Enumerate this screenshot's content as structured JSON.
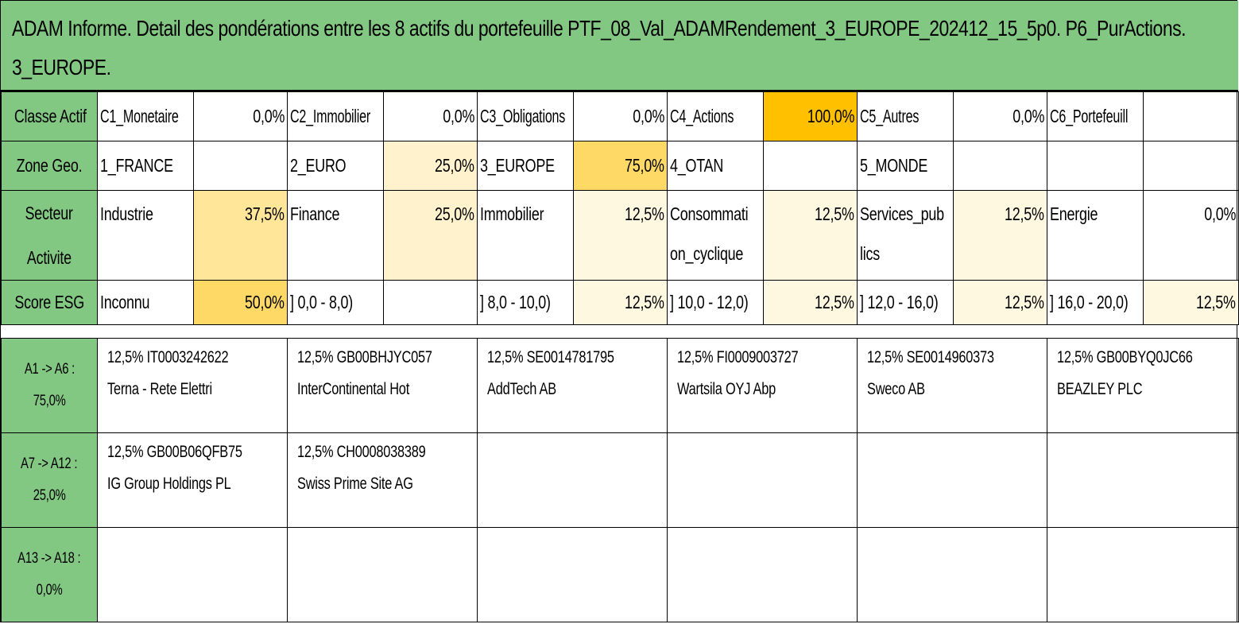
{
  "title": {
    "line1": "ADAM Informe. Detail des pondérations entre les 8 actifs du portefeuille PTF_08_Val_ADAMRendement_3_EUROPE_202412_15_5p0. P6_PurActions.",
    "line2": "3_EUROPE."
  },
  "rows": {
    "classe": {
      "header": "Classe Actif",
      "cells": [
        {
          "label": "C1_Monetaire",
          "value": "0,0%"
        },
        {
          "label": "C2_Immobilier",
          "value": "0,0%"
        },
        {
          "label": "C3_Obligations",
          "value": "0,0%"
        },
        {
          "label": "C4_Actions",
          "value": "100,0%"
        },
        {
          "label": "C5_Autres",
          "value": "0,0%"
        },
        {
          "label": "C6_Portefeuill",
          "value": ""
        }
      ]
    },
    "zone": {
      "header": "Zone Geo.",
      "cells": [
        {
          "label": "1_FRANCE",
          "value": ""
        },
        {
          "label": "2_EURO",
          "value": "25,0%"
        },
        {
          "label": "3_EUROPE",
          "value": "75,0%"
        },
        {
          "label": "4_OTAN",
          "value": ""
        },
        {
          "label": "5_MONDE",
          "value": ""
        },
        {
          "label": "",
          "value": ""
        }
      ]
    },
    "secteur": {
      "header_line1": "Secteur",
      "header_line2": "Activite",
      "cells": [
        {
          "label": "Industrie",
          "label2": "",
          "value": "37,5%"
        },
        {
          "label": "Finance",
          "label2": "",
          "value": "25,0%"
        },
        {
          "label": "Immobilier",
          "label2": "",
          "value": "12,5%"
        },
        {
          "label": "Consommati",
          "label2": "on_cyclique",
          "value": "12,5%"
        },
        {
          "label": "Services_pub",
          "label2": "lics",
          "value": "12,5%"
        },
        {
          "label": "Energie",
          "label2": "",
          "value": "0,0%"
        }
      ]
    },
    "esg": {
      "header": "Score ESG",
      "cells": [
        {
          "label": "Inconnu",
          "value": "50,0%"
        },
        {
          "label": "] 0,0 - 8,0)",
          "value": ""
        },
        {
          "label": "] 8,0 - 10,0)",
          "value": "12,5%"
        },
        {
          "label": "] 10,0 - 12,0)",
          "value": "12,5%"
        },
        {
          "label": "] 12,0 - 16,0)",
          "value": "12,5%"
        },
        {
          "label": "] 16,0 - 20,0)",
          "value": "12,5%"
        }
      ]
    }
  },
  "assets": [
    {
      "header_line1": "A1 -> A6 :",
      "header_line2": "75,0%",
      "items": [
        {
          "line1": "12,5% IT0003242622",
          "line2": "Terna - Rete Elettri"
        },
        {
          "line1": "12,5% GB00BHJYC057",
          "line2": "InterContinental Hot"
        },
        {
          "line1": "12,5% SE0014781795",
          "line2": "AddTech AB"
        },
        {
          "line1": "12,5% FI0009003727",
          "line2": "Wartsila OYJ Abp"
        },
        {
          "line1": "12,5% SE0014960373",
          "line2": "Sweco AB"
        },
        {
          "line1": "12,5% GB00BYQ0JC66",
          "line2": "BEAZLEY PLC"
        }
      ]
    },
    {
      "header_line1": "A7 -> A12 :",
      "header_line2": "25,0%",
      "items": [
        {
          "line1": "12,5% GB00B06QFB75",
          "line2": "IG Group Holdings PL"
        },
        {
          "line1": "12,5% CH0008038389",
          "line2": "Swiss Prime Site AG"
        },
        {
          "line1": "",
          "line2": ""
        },
        {
          "line1": "",
          "line2": ""
        },
        {
          "line1": "",
          "line2": ""
        },
        {
          "line1": "",
          "line2": ""
        }
      ]
    },
    {
      "header_line1": "A13 -> A18 :",
      "header_line2": "0,0%",
      "items": [
        {
          "line1": "",
          "line2": ""
        },
        {
          "line1": "",
          "line2": ""
        },
        {
          "line1": "",
          "line2": ""
        },
        {
          "line1": "",
          "line2": ""
        },
        {
          "line1": "",
          "line2": ""
        },
        {
          "line1": "",
          "line2": ""
        }
      ]
    }
  ],
  "colors": {
    "header_green": "#82c882",
    "highlight_orange": "#ffc000",
    "highlight_yellow_strong": "#ffd966",
    "highlight_yellow_mid": "#ffe699",
    "highlight_yellow_light": "#fff2cc"
  }
}
